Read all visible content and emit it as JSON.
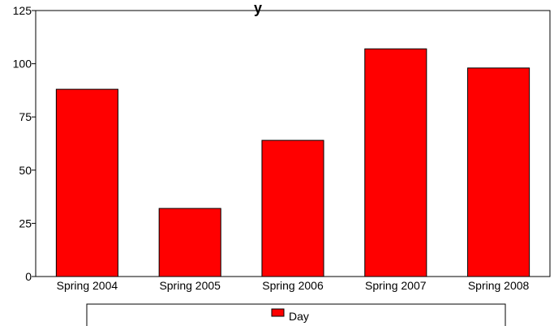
{
  "chart_data": {
    "type": "bar",
    "title": "Day",
    "title_visible_fragment": "y",
    "categories": [
      "Spring 2004",
      "Spring 2005",
      "Spring 2006",
      "Spring 2007",
      "Spring 2008"
    ],
    "series": [
      {
        "name": "Day",
        "values": [
          88,
          32,
          64,
          107,
          98
        ],
        "color": "#ff0000"
      }
    ],
    "ylim": [
      0,
      125
    ],
    "yticks": [
      "0",
      "25",
      "50",
      "75",
      "100",
      "125"
    ],
    "grid": false,
    "legend": "bottom"
  }
}
